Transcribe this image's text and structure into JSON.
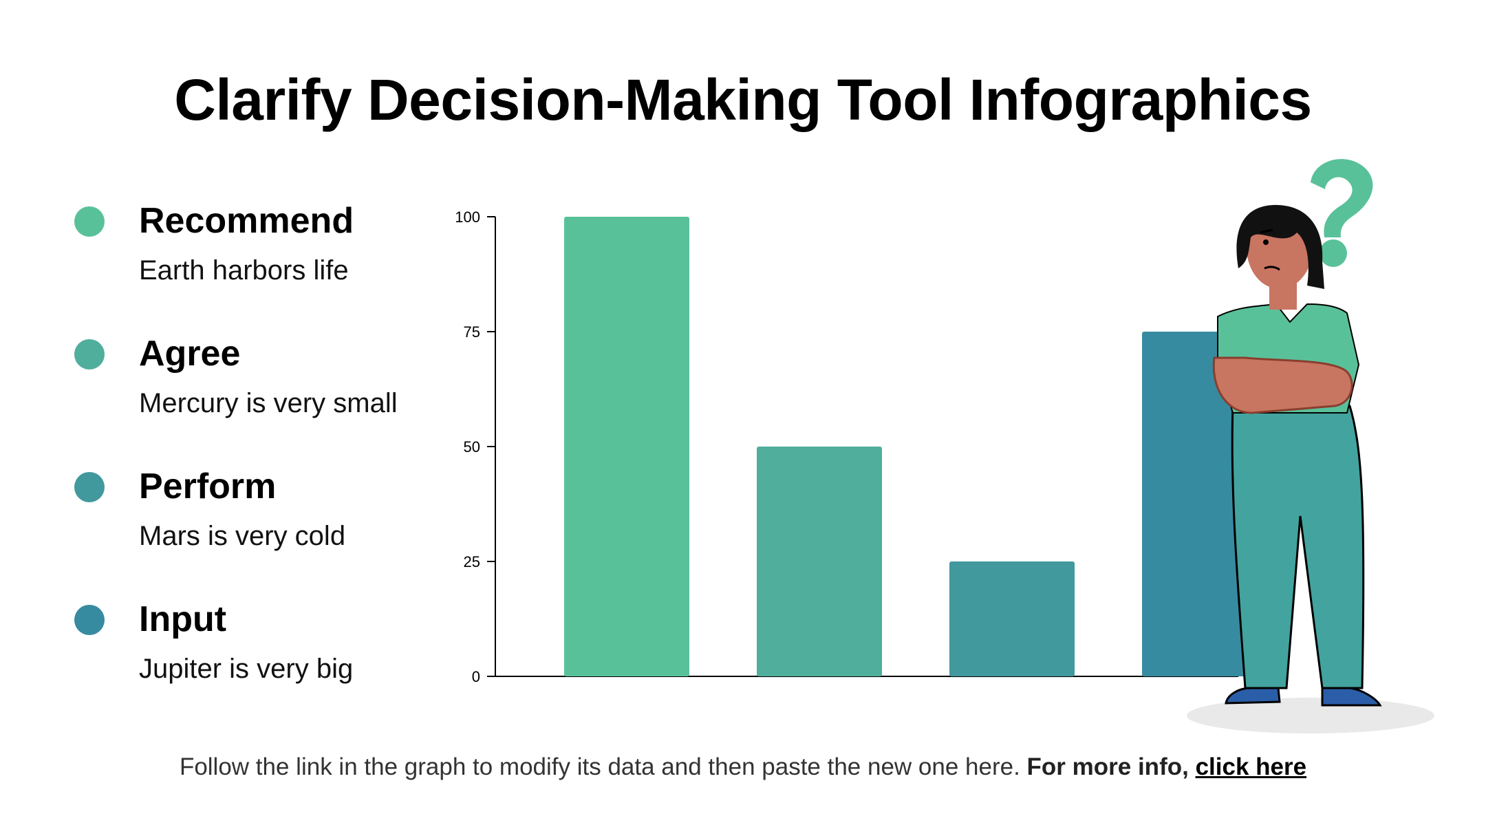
{
  "title": "Clarify Decision-Making Tool Infographics",
  "legend": [
    {
      "title": "Recommend",
      "desc": "Earth harbors life",
      "color": "#59c19a"
    },
    {
      "title": "Agree",
      "desc": "Mercury is very small",
      "color": "#4fae9c"
    },
    {
      "title": "Perform",
      "desc": "Mars is very cold",
      "color": "#41999d"
    },
    {
      "title": "Input",
      "desc": "Jupiter is very big",
      "color": "#378ba0"
    }
  ],
  "chart_data": {
    "type": "bar",
    "categories": [
      "Recommend",
      "Agree",
      "Perform",
      "Input"
    ],
    "values": [
      100,
      50,
      25,
      75
    ],
    "colors": [
      "#59c19a",
      "#4fae9c",
      "#41999d",
      "#378ba0"
    ],
    "ylim": [
      0,
      100
    ],
    "yticks": [
      "0",
      "25",
      "50",
      "75",
      "100"
    ],
    "grid": false
  },
  "footer": {
    "text": "Follow the link in the graph to modify its data and then paste the new one here.",
    "bold": "For more info,",
    "link": "click here"
  }
}
